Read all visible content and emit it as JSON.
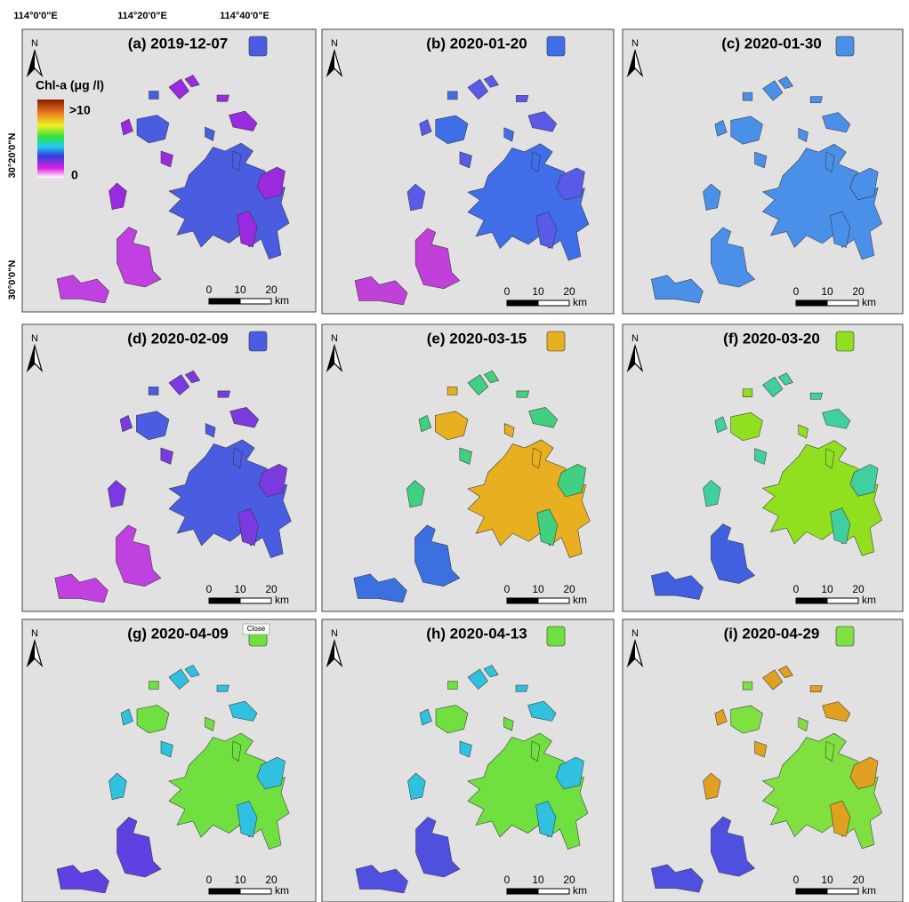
{
  "axes": {
    "longitude_labels": [
      "114°0'0\"E",
      "114°20'0\"E",
      "114°40'0\"E"
    ],
    "latitude_labels": [
      "30°20'0\"N",
      "30°0'0\"N"
    ]
  },
  "legend": {
    "title": "Chl-a (μg /l)",
    "max_label": ">10",
    "min_label": "0"
  },
  "tooltip": "Close",
  "panels": [
    {
      "title": "(a) 2019-12-07",
      "north": "N",
      "scale_labels": [
        "0",
        "10",
        "20"
      ],
      "scale_unit": "km"
    },
    {
      "title": "(b) 2020-01-20",
      "north": "N",
      "scale_labels": [
        "0",
        "10",
        "20"
      ],
      "scale_unit": "km"
    },
    {
      "title": "(c) 2020-01-30",
      "north": "N",
      "scale_labels": [
        "0",
        "10",
        "20"
      ],
      "scale_unit": "km"
    },
    {
      "title": "(d) 2020-02-09",
      "north": "N",
      "scale_labels": [
        "0",
        "10",
        "20"
      ],
      "scale_unit": "km"
    },
    {
      "title": "(e) 2020-03-15",
      "north": "N",
      "scale_labels": [
        "0",
        "10",
        "20"
      ],
      "scale_unit": "km"
    },
    {
      "title": "(f) 2020-03-20",
      "north": "N",
      "scale_labels": [
        "0",
        "10",
        "20"
      ],
      "scale_unit": "km"
    },
    {
      "title": "(g) 2020-04-09",
      "north": "N",
      "scale_labels": [
        "0",
        "10",
        "20"
      ],
      "scale_unit": "km"
    },
    {
      "title": "(h) 2020-04-13",
      "north": "N",
      "scale_labels": [
        "0",
        "10",
        "20"
      ],
      "scale_unit": "km"
    },
    {
      "title": "(i) 2020-04-29",
      "north": "N",
      "scale_labels": [
        "0",
        "10",
        "20"
      ],
      "scale_unit": "km"
    }
  ]
}
